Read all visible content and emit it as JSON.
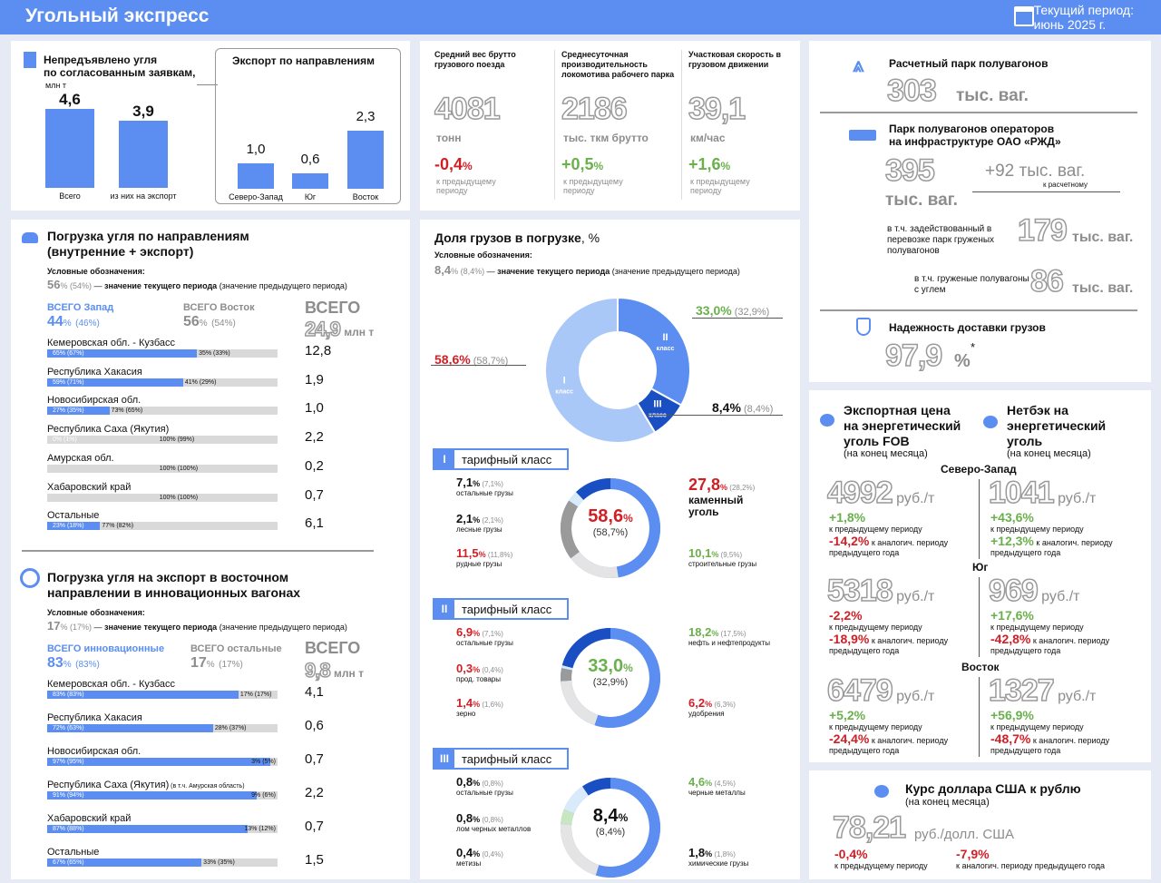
{
  "header": {
    "title": "Угольный экспресс",
    "period_line1": "Текущий период:",
    "period_line2": "июнь 2025 г."
  },
  "not_shipped": {
    "title_line1": "Непредъявлено угля",
    "title_line2": "по согласованным заявкам,",
    "unit": "млн т",
    "bars": [
      {
        "label": "Всего",
        "value": "4,6",
        "v": 4.6
      },
      {
        "label": "из них на экспорт",
        "value": "3,9",
        "v": 3.9
      }
    ]
  },
  "export_dirs": {
    "title": "Экспорт по направлениям",
    "bars": [
      {
        "label": "Северо-Запад",
        "value": "1,0",
        "v": 1.0
      },
      {
        "label": "Юг",
        "value": "0,6",
        "v": 0.6
      },
      {
        "label": "Восток",
        "value": "2,3",
        "v": 2.3
      }
    ]
  },
  "kpis": [
    {
      "title": "Средний вес брутто грузового поезда",
      "value": "4081",
      "unit": "тонн",
      "change": "-0,4",
      "pct": "%",
      "note": "к предыдущему периоду",
      "dir": "down"
    },
    {
      "title": "Среднесуточная производительность локомотива рабочего парка",
      "value": "2186",
      "unit": "тыс. ткм брутто",
      "change": "+0,5",
      "pct": "%",
      "note": "к предыдущему периоду",
      "dir": "up"
    },
    {
      "title": "Участковая скорость в грузовом движении",
      "value": "39,1",
      "unit": "км/час",
      "change": "+1,6",
      "pct": "%",
      "note": "к предыдущему периоду",
      "dir": "up"
    }
  ],
  "fleet": {
    "calc_title": "Расчетный парк полувагонов",
    "calc_value": "303",
    "calc_unit": "тыс. ваг.",
    "ops_title_1": "Парк полувагонов операторов",
    "ops_title_2": "на инфраструктуре ОАО «РЖД»",
    "ops_value": "395",
    "ops_unit": "тыс. ваг.",
    "ops_delta": "+92 тыс. ваг.",
    "ops_delta_note": "к расчетному",
    "used_label": "в т.ч. задействованный в перевозке парк груженых полувагонов",
    "used_value": "179",
    "used_unit": "тыс. ваг.",
    "coal_label": "в т.ч. груженые полувагоны с углем",
    "coal_value": "86",
    "coal_unit": "тыс. ваг.",
    "rel_title": "Надежность доставки грузов",
    "rel_value": "97,9",
    "rel_pct": "%",
    "rel_star": "*"
  },
  "loading": {
    "title_1": "Погрузка угля по направлениям",
    "title_2": "(внутренние + экспорт)",
    "legend_head": "Условные обозначения:",
    "legend_cur": "56",
    "legend_pct": "%",
    "legend_prev": "(54%)",
    "legend_dash": "—",
    "legend_bold": "значение текущего периода",
    "legend_rest": "(значение предыдущего периода)",
    "west_label": "ВСЕГО Запад",
    "west_value": "44",
    "west_prev": "(46%)",
    "east_label": "ВСЕГО Восток",
    "east_value": "56",
    "east_prev": "(54%)",
    "total_label": "ВСЕГО",
    "total_value": "24,9",
    "total_unit": "млн т",
    "rows": [
      {
        "name": "Кемеровская обл. - Кузбасс",
        "l": "65%",
        "lp": "(67%)",
        "r": "35%",
        "rp": "(33%)",
        "share": 0.65,
        "total": "12,8"
      },
      {
        "name": "Республика Хакасия",
        "l": "59%",
        "lp": "(71%)",
        "r": "41%",
        "rp": "(29%)",
        "share": 0.59,
        "total": "1,9"
      },
      {
        "name": "Новосибирская обл.",
        "l": "27%",
        "lp": "(35%)",
        "r": "73%",
        "rp": "(65%)",
        "share": 0.27,
        "total": "1,0"
      },
      {
        "name": "Республика Саха (Якутия)",
        "l": "0%",
        "lp": "(1%)",
        "r": "100%",
        "rp": "(99%)",
        "share": 0.0,
        "total": "2,2"
      },
      {
        "name": "Амурская обл.",
        "l": "",
        "lp": "",
        "r": "100%",
        "rp": "(100%)",
        "share": 0.0,
        "total": "0,2"
      },
      {
        "name": "Хабаровский край",
        "l": "",
        "lp": "",
        "r": "100%",
        "rp": "(100%)",
        "share": 0.0,
        "total": "0,7"
      },
      {
        "name": "Остальные",
        "l": "23%",
        "lp": "(18%)",
        "r": "77%",
        "rp": "(82%)",
        "share": 0.23,
        "total": "6,1"
      }
    ]
  },
  "innov": {
    "title_1": "Погрузка угля на экспорт в восточном",
    "title_2": "направлении в инновационных вагонах",
    "legend_head": "Условные обозначения:",
    "legend_cur": "17",
    "legend_pct": "%",
    "legend_prev": "(17%)",
    "legend_dash": "—",
    "legend_bold": "значение текущего периода",
    "legend_rest": "(значение предыдущего периода)",
    "a_label": "ВСЕГО инновационные",
    "a_value": "83",
    "a_prev": "(83%)",
    "b_label": "ВСЕГО остальные",
    "b_value": "17",
    "b_prev": "(17%)",
    "total_label": "ВСЕГО",
    "total_value": "9,8",
    "total_unit": "млн т",
    "rows": [
      {
        "name": "Кемеровская обл. - Кузбасс",
        "extra": "",
        "l": "83%",
        "lp": "(83%)",
        "r": "17%",
        "rp": "(17%)",
        "share": 0.83,
        "total": "4,1"
      },
      {
        "name": "Республика Хакасия",
        "extra": "",
        "l": "72%",
        "lp": "(63%)",
        "r": "28%",
        "rp": "(37%)",
        "share": 0.72,
        "total": "0,6"
      },
      {
        "name": "Новосибирская обл.",
        "extra": "",
        "l": "97%",
        "lp": "(95%)",
        "r": "3%",
        "rp": "(5%)",
        "share": 0.97,
        "total": "0,7"
      },
      {
        "name": "Республика Саха (Якутия)",
        "extra": "(в т.ч. Амурская область)",
        "l": "91%",
        "lp": "(94%)",
        "r": "9%",
        "rp": "(6%)",
        "share": 0.91,
        "total": "2,2"
      },
      {
        "name": "Хабаровский край",
        "extra": "",
        "l": "87%",
        "lp": "(88%)",
        "r": "13%",
        "rp": "(12%)",
        "share": 0.87,
        "total": "0,7"
      },
      {
        "name": "Остальные",
        "extra": "",
        "l": "67%",
        "lp": "(65%)",
        "r": "33%",
        "rp": "(35%)",
        "share": 0.67,
        "total": "1,5"
      }
    ]
  },
  "share": {
    "title": "Доля грузов в погрузке",
    "title_unit": ", %",
    "legend_head": "Условные обозначения:",
    "legend_cur": "8,4",
    "legend_pct": "%",
    "legend_prev": "(8,4%)",
    "legend_dash": "—",
    "legend_bold": "значение текущего периода",
    "legend_rest": "(значение предыдущего периода)",
    "donut": [
      {
        "name": "I класс",
        "roman": "I",
        "cls": "класс",
        "value": 58.6,
        "label": "58,6%",
        "prev": "(58,7%)",
        "color": "#a9c7f7"
      },
      {
        "name": "II класс",
        "roman": "II",
        "cls": "класс",
        "value": 33.0,
        "label": "33,0%",
        "prev": "(32,9%)",
        "color": "#5b8ef0"
      },
      {
        "name": "III класс",
        "roman": "III",
        "cls": "класс",
        "value": 8.4,
        "label": "8,4%",
        "prev": "(8,4%)",
        "color": "#1a4fc4"
      }
    ],
    "classes": [
      {
        "roman": "I",
        "label": "тарифный класс",
        "center": "58,6",
        "center_pct": "%",
        "center_prev": "(58,7%)",
        "items": [
          {
            "v": "7,1",
            "p": "(7,1%)",
            "name": "остальные грузы"
          },
          {
            "v": "2,1",
            "p": "(2,1%)",
            "name": "лесные грузы"
          },
          {
            "v": "11,5",
            "p": "(11,8%)",
            "name": "рудные грузы"
          },
          {
            "v": "27,8",
            "p": "(28,2%)",
            "name": "каменный уголь"
          },
          {
            "v": "10,1",
            "p": "(9,5%)",
            "name": "строительные грузы"
          }
        ]
      },
      {
        "roman": "II",
        "label": "тарифный класс",
        "center": "33,0",
        "center_pct": "%",
        "center_prev": "(32,9%)",
        "items": [
          {
            "v": "6,9",
            "p": "(7,1%)",
            "name": "остальные грузы"
          },
          {
            "v": "0,3",
            "p": "(0,4%)",
            "name": "прод. товары"
          },
          {
            "v": "1,4",
            "p": "(1,6%)",
            "name": "зерно"
          },
          {
            "v": "18,2",
            "p": "(17,5%)",
            "name": "нефть и нефтепродукты"
          },
          {
            "v": "6,2",
            "p": "(6,3%)",
            "name": "удобрения"
          }
        ]
      },
      {
        "roman": "III",
        "label": "тарифный класс",
        "center": "8,4",
        "center_pct": "%",
        "center_prev": "(8,4%)",
        "items": [
          {
            "v": "0,8",
            "p": "(0,8%)",
            "name": "остальные грузы"
          },
          {
            "v": "0,8",
            "p": "(0,8%)",
            "name": "лом черных металлов"
          },
          {
            "v": "0,4",
            "p": "(0,4%)",
            "name": "метизы"
          },
          {
            "v": "4,6",
            "p": "(4,5%)",
            "name": "черные металлы"
          },
          {
            "v": "1,8",
            "p": "(1,8%)",
            "name": "химические грузы"
          }
        ]
      }
    ]
  },
  "prices": {
    "fob_title_1": "Экспортная цена",
    "fob_title_2": "на энергетический",
    "fob_title_3": "уголь FOB",
    "fob_sub": "(на конец месяца)",
    "net_title_1": "Нетбэк на",
    "net_title_2": "энергетический",
    "net_title_3": "уголь",
    "net_sub": "(на конец месяца)",
    "unit": "руб./т",
    "note_prev": "к предыдущему периоду",
    "note_year_1": "к аналогич. периоду",
    "note_year_2": "предыдущего года",
    "regions": [
      {
        "name": "Северо-Запад",
        "fob": "4992",
        "fob_m": "+1,8%",
        "fob_y": "-14,2%",
        "net": "1041",
        "net_m": "+43,6%",
        "net_y": "+12,3%"
      },
      {
        "name": "Юг",
        "fob": "5318",
        "fob_m": "-2,2%",
        "fob_y": "-18,9%",
        "net": "969",
        "net_m": "+17,6%",
        "net_y": "-42,8%"
      },
      {
        "name": "Восток",
        "fob": "6479",
        "fob_m": "+5,2%",
        "fob_y": "-24,4%",
        "net": "1327",
        "net_m": "+56,9%",
        "net_y": "-48,7%"
      }
    ]
  },
  "usd": {
    "title": "Курс доллара США к рублю",
    "sub": "(на конец месяца)",
    "value": "78,21",
    "unit": "руб./долл. США",
    "m": "-0,4%",
    "m_note": "к предыдущему периоду",
    "y": "-7,9%",
    "y_note": "к аналогич. периоду предыдущего года"
  }
}
